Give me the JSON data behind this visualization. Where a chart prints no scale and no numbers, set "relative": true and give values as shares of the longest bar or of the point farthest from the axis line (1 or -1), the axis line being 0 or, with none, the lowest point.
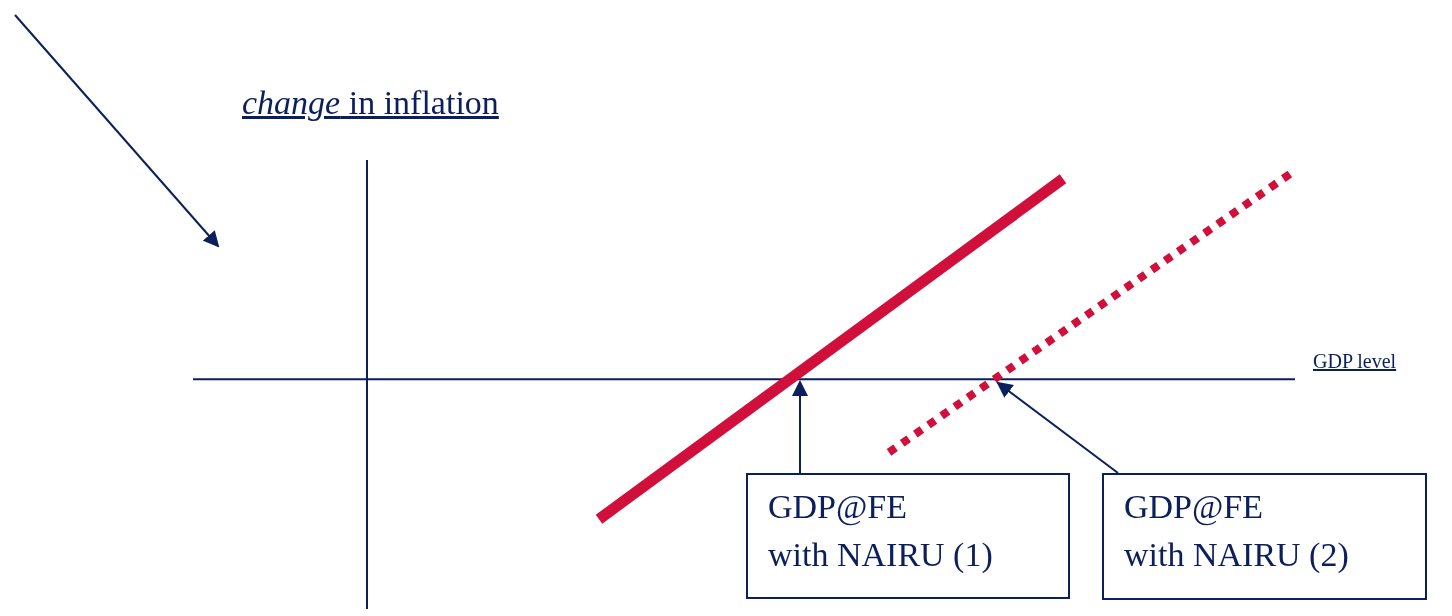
{
  "chart_data": {
    "type": "line",
    "relative": true,
    "ylabel": "change in inflation",
    "xlabel": "GDP level",
    "categories": [
      null,
      null,
      null,
      null,
      null,
      null,
      null,
      null,
      null,
      null,
      null,
      null,
      null,
      null,
      null,
      null,
      null,
      null,
      null,
      null
    ],
    "marker": "none",
    "series": [
      {
        "color": "#d0103a",
        "line_style": "solid",
        "values": [
          null,
          null,
          null,
          null,
          null,
          null,
          null,
          -0.67,
          null,
          null,
          null,
          null,
          null,
          null,
          null,
          0.96,
          null,
          null,
          null,
          null
        ]
      },
      {
        "color": "#d0103a",
        "line_style": "dotted",
        "values": [
          null,
          null,
          null,
          null,
          null,
          null,
          null,
          null,
          null,
          null,
          null,
          null,
          -0.35,
          null,
          null,
          null,
          null,
          null,
          null,
          1
        ]
      }
    ],
    "annotations": [
      "GDP@FE\nwith NAIRU (1)",
      "GDP@FE\nwith NAIRU (2)"
    ]
  }
}
